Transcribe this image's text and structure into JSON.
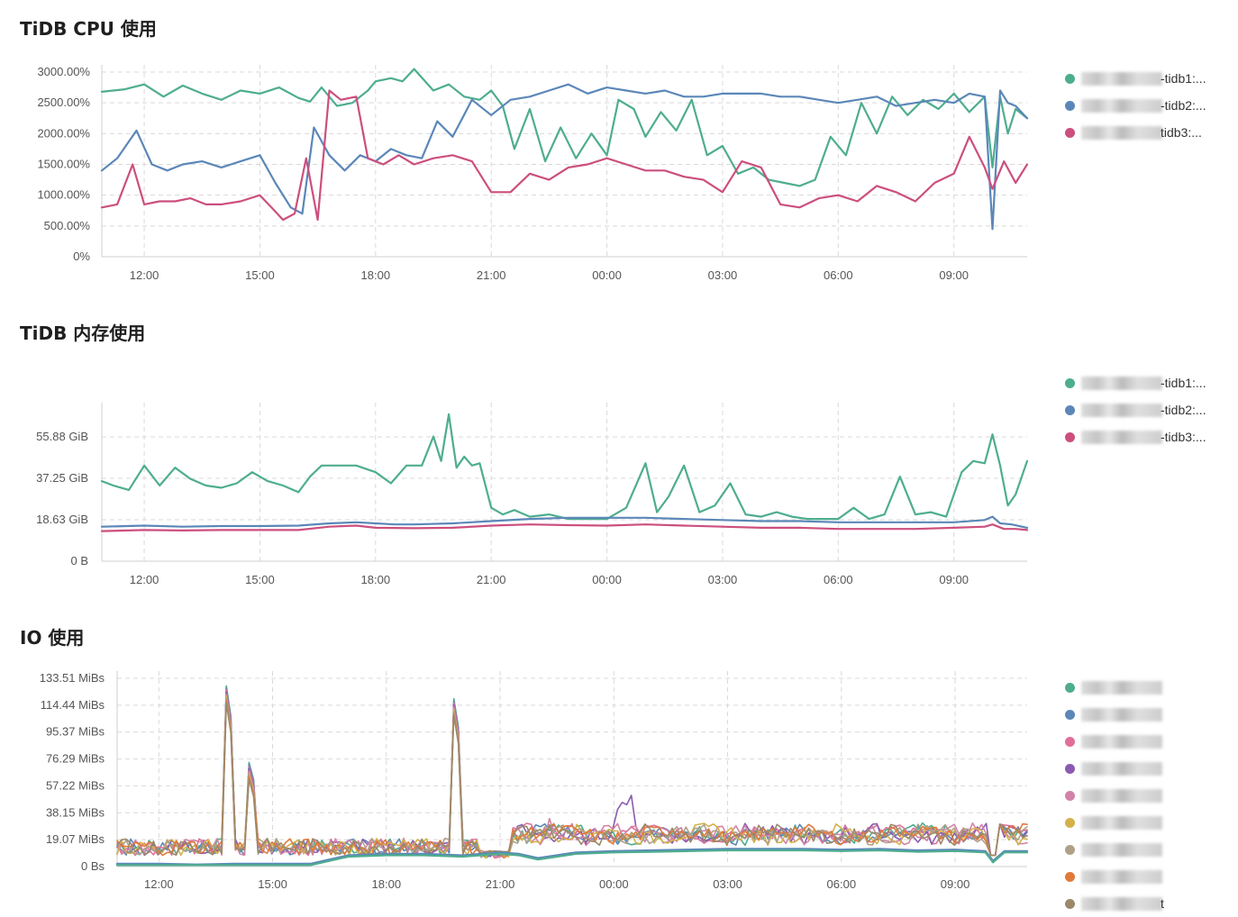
{
  "colors": {
    "green": "#4ead8f",
    "blue": "#5b87b8",
    "pink": "#cc4f7e",
    "grid": "#d9d9d9",
    "axis": "#cfcfcf"
  },
  "panels": [
    {
      "title": "TiDB CPU 使用",
      "legend": [
        {
          "label": "-tidb1:...",
          "color": "#4ead8f"
        },
        {
          "label": "-tidb2:...",
          "color": "#5b87b8"
        },
        {
          "label": "tidb3:...",
          "color": "#cc4f7e"
        }
      ]
    },
    {
      "title": "TiDB 内存使用",
      "legend": [
        {
          "label": "-tidb1:...",
          "color": "#4ead8f"
        },
        {
          "label": "-tidb2:...",
          "color": "#5b87b8"
        },
        {
          "label": "-tidb3:...",
          "color": "#cc4f7e"
        }
      ]
    },
    {
      "title": "IO 使用",
      "legend": [
        {
          "label": "",
          "color": "#4ead8f"
        },
        {
          "label": "",
          "color": "#5b87b8"
        },
        {
          "label": "",
          "color": "#e0709a"
        },
        {
          "label": "",
          "color": "#8a5bb0"
        },
        {
          "label": "",
          "color": "#d383a6"
        },
        {
          "label": "",
          "color": "#d4b24a"
        },
        {
          "label": "",
          "color": "#b0a08a"
        },
        {
          "label": "",
          "color": "#e07a3a"
        },
        {
          "label": "t",
          "color": "#9a8a6a"
        }
      ]
    }
  ],
  "chart_data": [
    {
      "type": "line",
      "title": "TiDB CPU 使用",
      "x_ticks": [
        "12:00",
        "15:00",
        "18:00",
        "21:00",
        "00:00",
        "03:00",
        "06:00",
        "09:00"
      ],
      "y_ticks": [
        "0%",
        "500.00%",
        "1000.00%",
        "1500.00%",
        "2000.00%",
        "2500.00%",
        "3000.00%"
      ],
      "ylim": [
        0,
        3000
      ],
      "x_range_hours": [
        10.9,
        34.9
      ],
      "grid": true,
      "legend_position": "right",
      "series": [
        {
          "name": "tidb1",
          "color": "#4ead8f",
          "x": [
            10.9,
            11.5,
            12.0,
            12.5,
            13.0,
            13.5,
            14.0,
            14.5,
            15.0,
            15.5,
            16.0,
            16.3,
            16.6,
            17.0,
            17.4,
            17.8,
            18.0,
            18.4,
            18.7,
            19.0,
            19.5,
            19.9,
            20.3,
            20.7,
            21.0,
            21.3,
            21.6,
            22.0,
            22.4,
            22.8,
            23.2,
            23.6,
            24.0,
            24.3,
            24.7,
            25.0,
            25.4,
            25.8,
            26.2,
            26.6,
            27.0,
            27.4,
            27.8,
            28.2,
            28.6,
            29.0,
            29.4,
            29.8,
            30.2,
            30.6,
            31.0,
            31.4,
            31.8,
            32.2,
            32.6,
            33.0,
            33.4,
            33.8,
            34.0,
            34.2,
            34.4,
            34.6,
            34.9
          ],
          "values": [
            2680,
            2720,
            2800,
            2600,
            2780,
            2650,
            2550,
            2700,
            2650,
            2750,
            2580,
            2520,
            2750,
            2450,
            2500,
            2700,
            2850,
            2900,
            2850,
            3050,
            2700,
            2800,
            2600,
            2550,
            2700,
            2450,
            1750,
            2400,
            1550,
            2100,
            1600,
            2000,
            1650,
            2550,
            2400,
            1950,
            2350,
            2050,
            2550,
            1650,
            1800,
            1350,
            1450,
            1250,
            1200,
            1150,
            1250,
            1950,
            1650,
            2500,
            2000,
            2600,
            2300,
            2550,
            2400,
            2650,
            2350,
            2600,
            1450,
            2600,
            2000,
            2400,
            2250
          ]
        },
        {
          "name": "tidb2",
          "color": "#5b87b8",
          "x": [
            10.9,
            11.3,
            11.8,
            12.2,
            12.6,
            13.0,
            13.5,
            14.0,
            14.5,
            15.0,
            15.4,
            15.8,
            16.1,
            16.4,
            16.8,
            17.2,
            17.6,
            18.0,
            18.4,
            18.8,
            19.2,
            19.6,
            20.0,
            20.5,
            21.0,
            21.5,
            22.0,
            22.5,
            23.0,
            23.5,
            24.0,
            24.5,
            25.0,
            25.5,
            26.0,
            26.5,
            27.0,
            27.5,
            28.0,
            28.5,
            29.0,
            29.5,
            30.0,
            30.5,
            31.0,
            31.5,
            32.0,
            32.5,
            33.0,
            33.4,
            33.8,
            34.0,
            34.2,
            34.4,
            34.6,
            34.9
          ],
          "values": [
            1400,
            1600,
            2050,
            1500,
            1400,
            1500,
            1550,
            1450,
            1550,
            1650,
            1200,
            800,
            700,
            2100,
            1650,
            1400,
            1650,
            1550,
            1750,
            1650,
            1600,
            2200,
            1950,
            2550,
            2300,
            2550,
            2600,
            2700,
            2800,
            2650,
            2750,
            2700,
            2650,
            2700,
            2600,
            2600,
            2650,
            2650,
            2650,
            2600,
            2600,
            2550,
            2500,
            2550,
            2600,
            2450,
            2500,
            2550,
            2500,
            2650,
            2600,
            450,
            2700,
            2500,
            2450,
            2250
          ]
        },
        {
          "name": "tidb3",
          "color": "#cc4f7e",
          "x": [
            10.9,
            11.3,
            11.7,
            12.0,
            12.4,
            12.8,
            13.2,
            13.6,
            14.0,
            14.5,
            15.0,
            15.3,
            15.6,
            15.9,
            16.2,
            16.5,
            16.8,
            17.1,
            17.5,
            17.8,
            18.2,
            18.6,
            19.0,
            19.5,
            20.0,
            20.5,
            21.0,
            21.5,
            22.0,
            22.5,
            23.0,
            23.5,
            24.0,
            24.5,
            25.0,
            25.5,
            26.0,
            26.5,
            27.0,
            27.5,
            28.0,
            28.5,
            29.0,
            29.5,
            30.0,
            30.5,
            31.0,
            31.5,
            32.0,
            32.5,
            33.0,
            33.4,
            33.8,
            34.0,
            34.3,
            34.6,
            34.9
          ],
          "values": [
            800,
            850,
            1500,
            850,
            900,
            900,
            950,
            850,
            850,
            900,
            1000,
            800,
            600,
            700,
            1600,
            600,
            2700,
            2550,
            2600,
            1600,
            1500,
            1650,
            1500,
            1600,
            1650,
            1550,
            1050,
            1050,
            1350,
            1250,
            1450,
            1500,
            1600,
            1500,
            1400,
            1400,
            1300,
            1250,
            1050,
            1550,
            1450,
            850,
            800,
            950,
            1000,
            900,
            1150,
            1050,
            900,
            1200,
            1350,
            1950,
            1450,
            1100,
            1550,
            1200,
            1500
          ]
        }
      ]
    },
    {
      "type": "line",
      "title": "TiDB 内存使用",
      "x_ticks": [
        "12:00",
        "15:00",
        "18:00",
        "21:00",
        "00:00",
        "03:00",
        "06:00",
        "09:00"
      ],
      "y_ticks": [
        "0 B",
        "18.63 GiB",
        "37.25 GiB",
        "55.88 GiB"
      ],
      "ylim": [
        0,
        68
      ],
      "x_range_hours": [
        10.9,
        34.9
      ],
      "grid": true,
      "legend_position": "right",
      "series": [
        {
          "name": "tidb1",
          "color": "#4ead8f",
          "x": [
            10.9,
            11.2,
            11.6,
            12.0,
            12.4,
            12.8,
            13.2,
            13.6,
            14.0,
            14.4,
            14.8,
            15.2,
            15.6,
            16.0,
            16.3,
            16.6,
            17.0,
            17.5,
            18.0,
            18.4,
            18.8,
            19.2,
            19.5,
            19.7,
            19.9,
            20.1,
            20.3,
            20.5,
            20.7,
            21.0,
            21.3,
            21.6,
            22.0,
            22.5,
            23.0,
            23.5,
            24.0,
            24.5,
            25.0,
            25.3,
            25.6,
            26.0,
            26.4,
            26.8,
            27.2,
            27.6,
            28.0,
            28.4,
            28.8,
            29.2,
            29.6,
            30.0,
            30.4,
            30.8,
            31.2,
            31.6,
            32.0,
            32.4,
            32.8,
            33.2,
            33.5,
            33.8,
            34.0,
            34.2,
            34.4,
            34.6,
            34.9
          ],
          "values": [
            36,
            34,
            32,
            43,
            34,
            42,
            37,
            34,
            33,
            35,
            40,
            36,
            34,
            31,
            38,
            43,
            43,
            43,
            40,
            35,
            43,
            43,
            56,
            45,
            66,
            42,
            47,
            43,
            44,
            24,
            21,
            23,
            20,
            21,
            19,
            19,
            19,
            24,
            44,
            22,
            29,
            43,
            22,
            25,
            35,
            21,
            20,
            22,
            20,
            19,
            19,
            19,
            24,
            19,
            21,
            38,
            21,
            22,
            20,
            40,
            45,
            44,
            57,
            43,
            25,
            30,
            45
          ]
        },
        {
          "name": "tidb2",
          "color": "#5b87b8",
          "x": [
            10.9,
            12.0,
            13.0,
            14.0,
            15.0,
            16.0,
            16.8,
            17.5,
            18.0,
            18.5,
            19.0,
            20.0,
            21.0,
            22.0,
            23.0,
            24.0,
            25.0,
            26.0,
            27.0,
            28.0,
            29.0,
            30.0,
            31.0,
            32.0,
            33.0,
            33.8,
            34.0,
            34.2,
            34.5,
            34.9
          ],
          "values": [
            15.5,
            16,
            15.5,
            15.8,
            15.8,
            16,
            17,
            17.5,
            17,
            16.5,
            16.5,
            17,
            18,
            19,
            19.5,
            19.5,
            19.5,
            19,
            18.5,
            18,
            18,
            17.5,
            17.5,
            17.5,
            17.5,
            18.5,
            20,
            17,
            16.5,
            15
          ]
        },
        {
          "name": "tidb3",
          "color": "#cc4f7e",
          "x": [
            10.9,
            12.0,
            13.0,
            14.0,
            15.0,
            16.0,
            16.8,
            17.5,
            18.0,
            19.0,
            20.0,
            21.0,
            22.0,
            23.0,
            24.0,
            25.0,
            26.0,
            27.0,
            28.0,
            29.0,
            30.0,
            31.0,
            32.0,
            33.0,
            33.8,
            34.0,
            34.3,
            34.6,
            34.9
          ],
          "values": [
            13.5,
            14,
            13.8,
            14,
            14,
            14,
            15.5,
            16,
            15,
            14.8,
            15,
            16,
            16.5,
            16.2,
            16,
            16.5,
            16,
            15.5,
            15,
            15,
            14.5,
            14.5,
            14.5,
            15,
            15.5,
            16.5,
            14.5,
            14.5,
            14
          ]
        }
      ]
    },
    {
      "type": "line",
      "title": "IO 使用",
      "x_ticks": [
        "12:00",
        "15:00",
        "18:00",
        "21:00",
        "00:00",
        "03:00",
        "06:00",
        "09:00"
      ],
      "y_ticks": [
        "0 Bs",
        "19.07 MiBs",
        "38.15 MiBs",
        "57.22 MiBs",
        "76.29 MiBs",
        "95.37 MiBs",
        "114.44 MiBs",
        "133.51 MiBs"
      ],
      "ylim": [
        0,
        133.51
      ],
      "x_range_hours": [
        10.9,
        34.9
      ],
      "grid": true,
      "legend_position": "right",
      "series_count": 9,
      "spikes": [
        {
          "x": 13.8,
          "value": 133.5
        },
        {
          "x": 14.4,
          "value": 77
        },
        {
          "x": 19.8,
          "value": 124
        }
      ],
      "baseline_series": [
        {
          "name": "low-1",
          "color": "#5b87b8",
          "x": [
            10.9,
            12.0,
            13.0,
            14.0,
            15.0,
            16.0,
            17.0,
            18.0,
            19.0,
            20.0,
            21.0,
            21.5,
            22.0,
            23.0,
            24.0,
            25.0,
            26.0,
            27.0,
            28.0,
            29.0,
            30.0,
            31.0,
            32.0,
            33.0,
            33.8,
            34.0,
            34.3,
            34.9
          ],
          "values": [
            2,
            2,
            1.5,
            2,
            2,
            2,
            8,
            9,
            9,
            8,
            10,
            9,
            6,
            10,
            11,
            11.5,
            12,
            12.5,
            12.5,
            12.5,
            12,
            12.5,
            11.5,
            12,
            11,
            4,
            11,
            11
          ]
        },
        {
          "name": "low-2",
          "color": "#4ead8f",
          "x": [
            10.9,
            12.0,
            13.0,
            14.0,
            15.0,
            16.0,
            17.0,
            18.0,
            19.0,
            20.0,
            21.0,
            21.5,
            22.0,
            23.0,
            24.0,
            25.0,
            26.0,
            27.0,
            28.0,
            29.0,
            30.0,
            31.0,
            32.0,
            33.0,
            33.8,
            34.0,
            34.3,
            34.9
          ],
          "values": [
            1,
            1,
            1,
            1,
            1,
            1,
            7,
            8,
            8,
            7,
            9,
            8,
            5,
            9,
            10,
            10.5,
            11,
            11.5,
            11.5,
            11.5,
            11,
            11.5,
            10.5,
            11,
            10,
            3,
            10,
            10
          ]
        }
      ]
    }
  ]
}
